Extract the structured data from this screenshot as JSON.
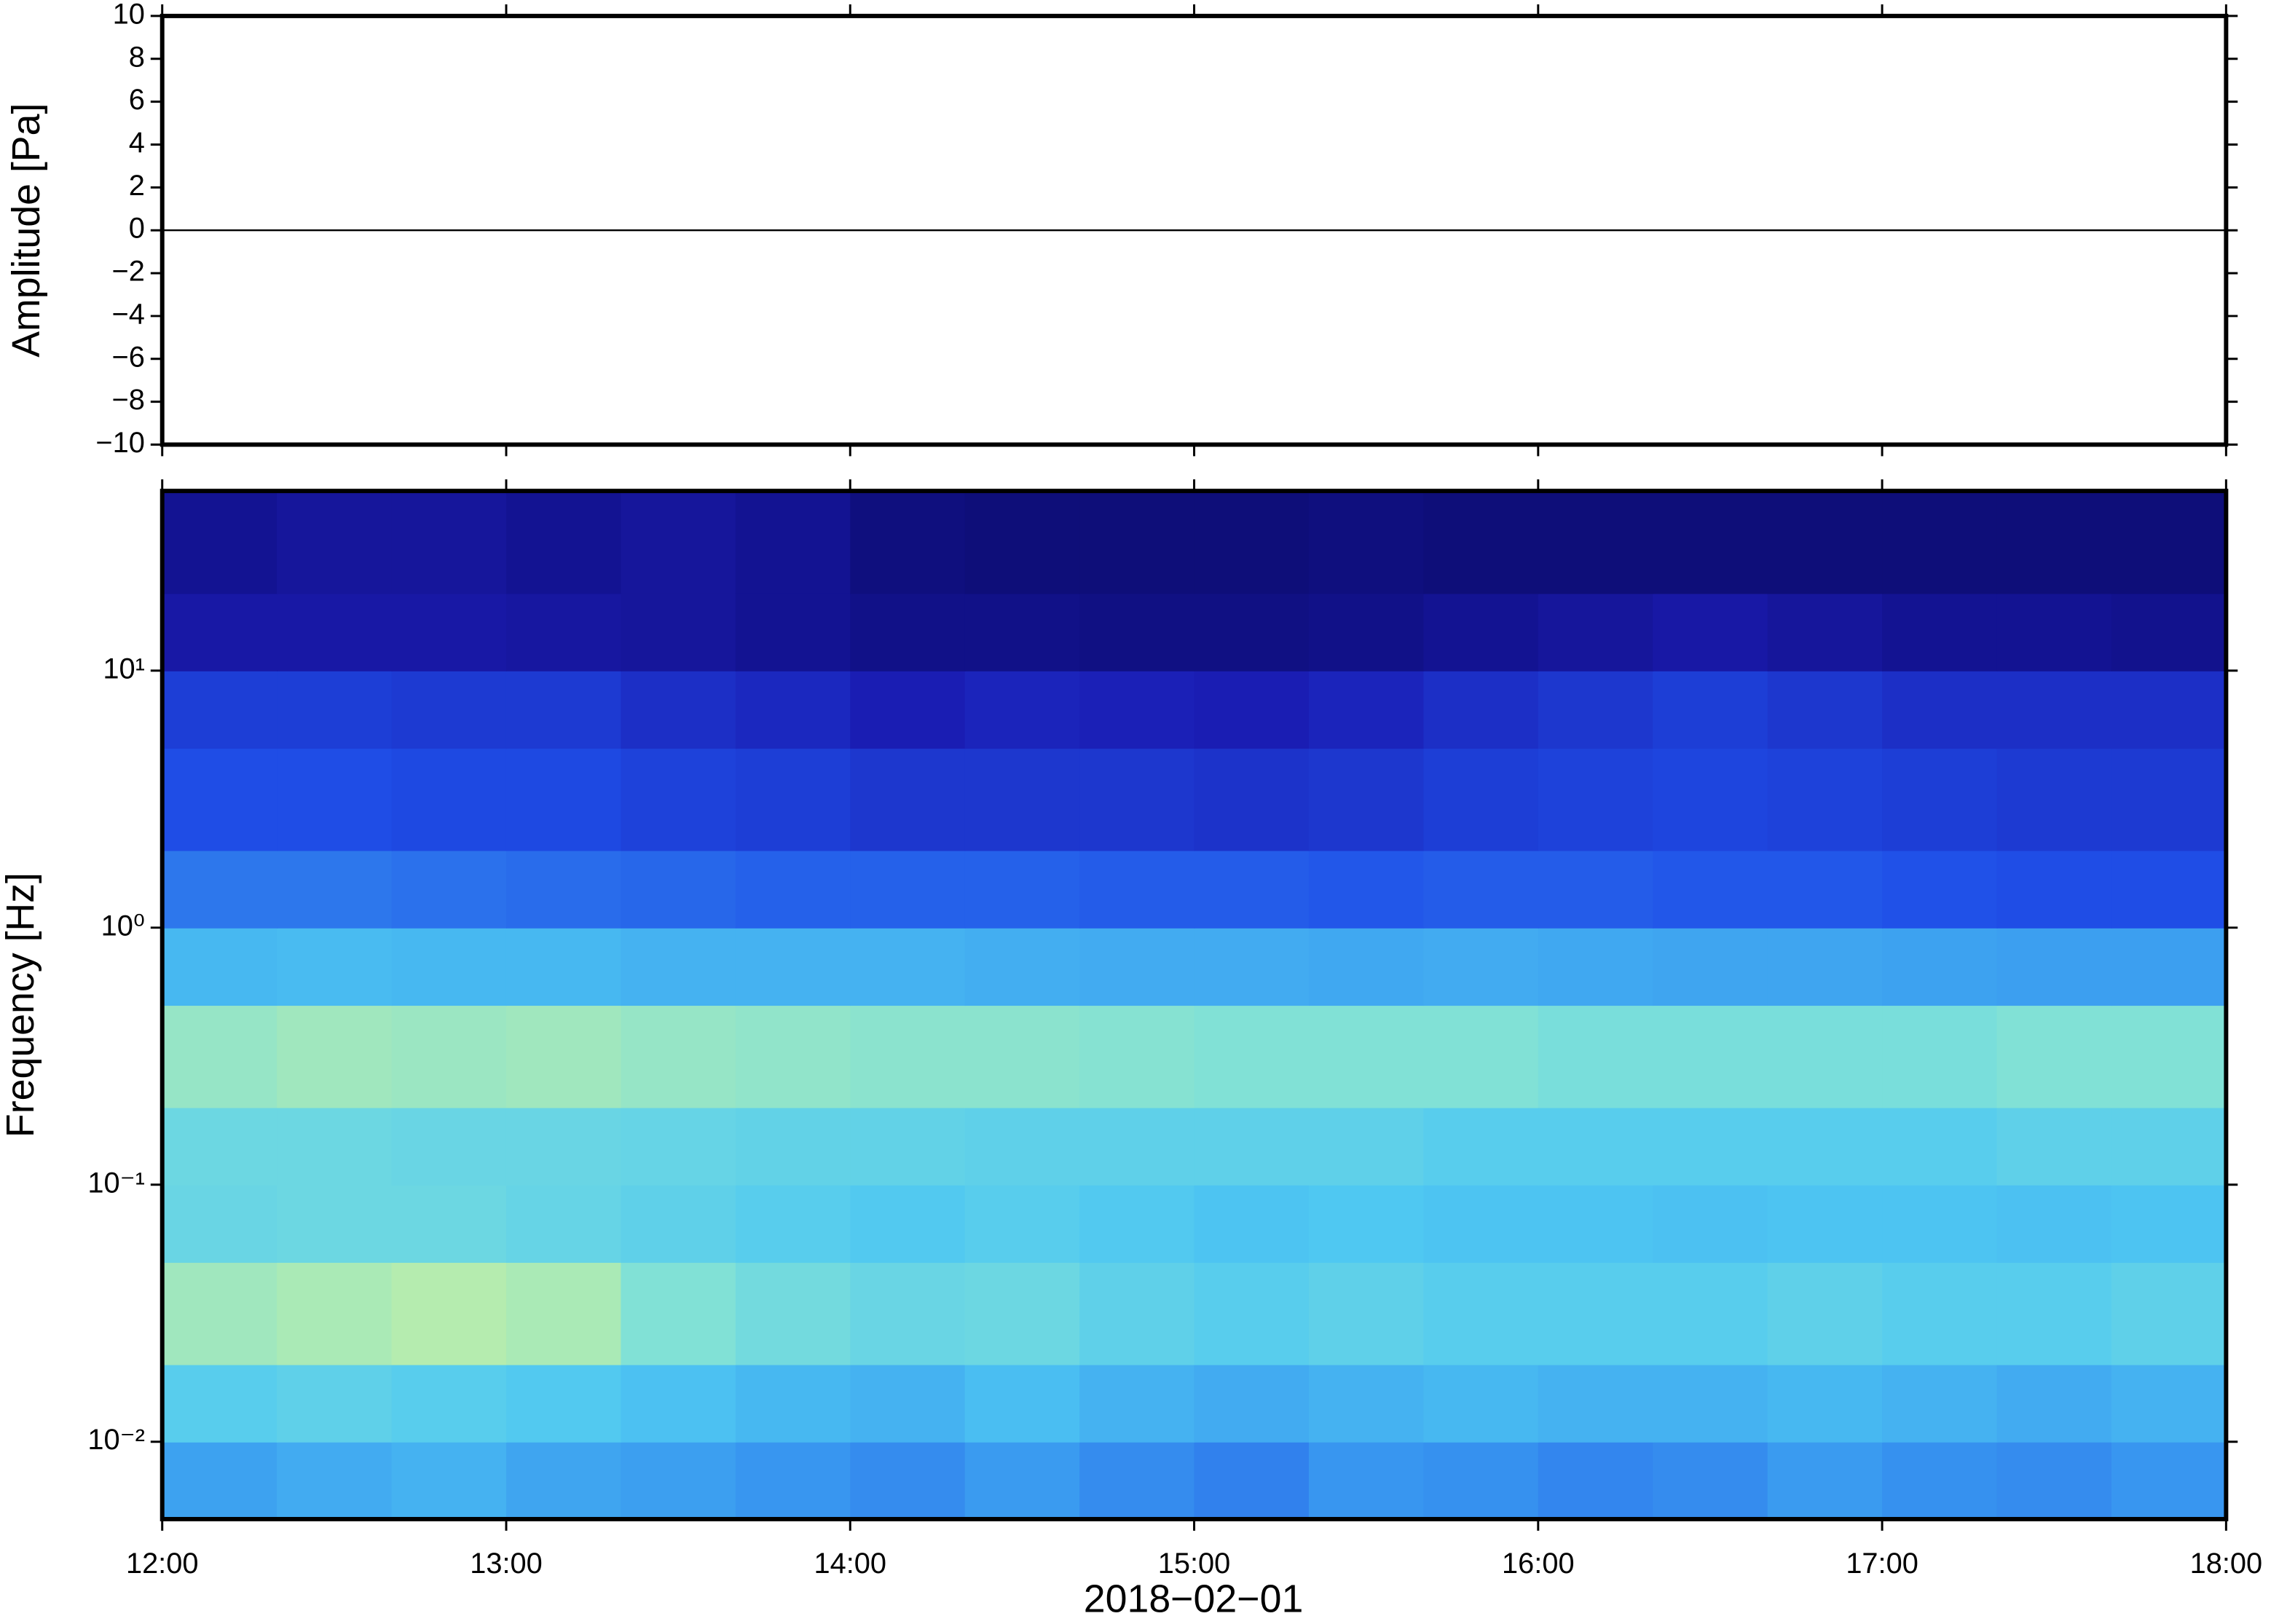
{
  "chart_data": [
    {
      "type": "line",
      "ylabel": "Amplitude [Pa]",
      "x": [
        12,
        18
      ],
      "series": [
        {
          "color": "#000000",
          "values": [
            0,
            0
          ]
        }
      ],
      "xlim": [
        12,
        18
      ],
      "xticks": [
        12,
        13,
        14,
        15,
        16,
        17,
        18
      ],
      "ylim": [
        -10,
        10
      ],
      "yticks": [
        {
          "value": -10,
          "label": "−10"
        },
        {
          "value": -8,
          "label": "−8"
        },
        {
          "value": -6,
          "label": "−6"
        },
        {
          "value": -4,
          "label": "−4"
        },
        {
          "value": -2,
          "label": "−2"
        },
        0,
        2,
        4,
        6,
        8,
        10
      ]
    },
    {
      "type": "heatmap",
      "ylabel": "Frequency [Hz]",
      "xlabel": "2018−02−01",
      "xlim": [
        12,
        18
      ],
      "xticks": [
        {
          "value": 12,
          "label": "12:00"
        },
        {
          "value": 13,
          "label": "13:00"
        },
        {
          "value": 14,
          "label": "14:00"
        },
        {
          "value": 15,
          "label": "15:00"
        },
        {
          "value": 16,
          "label": "16:00"
        },
        {
          "value": 17,
          "label": "17:00"
        },
        {
          "value": 18,
          "label": "18:00"
        }
      ],
      "ylim": [
        0.005,
        50
      ],
      "log_y": true,
      "yticks": [
        {
          "value": 0.01,
          "label": "10⁻²"
        },
        {
          "value": 0.1,
          "label": "10⁻¹"
        },
        {
          "value": 1,
          "label": "10⁰"
        },
        {
          "value": 10,
          "label": "10¹"
        }
      ],
      "x_edges": [
        12,
        12.3333,
        12.6667,
        13,
        13.3333,
        13.6667,
        14,
        14.3333,
        14.6667,
        15,
        15.3333,
        15.6667,
        16,
        16.3333,
        16.6667,
        17,
        17.3333,
        17.6667,
        18
      ],
      "y_edges": [
        0.005,
        0.01,
        0.02,
        0.05,
        0.1,
        0.2,
        0.5,
        1,
        2,
        5,
        10,
        20,
        50
      ],
      "zlim": [
        0,
        1
      ],
      "colormap": [
        "#0b0b6b",
        "#1a1ab0",
        "#1f4fe8",
        "#3a9bf0",
        "#4fc8f2",
        "#7ee0d8",
        "#c8f0a0",
        "#f0f8a0"
      ],
      "z": [
        [
          0.45,
          0.48,
          0.5,
          0.46,
          0.44,
          0.42,
          0.4,
          0.43,
          0.4,
          0.38,
          0.42,
          0.41,
          0.39,
          0.4,
          0.43,
          0.41,
          0.4,
          0.42
        ],
        [
          0.6,
          0.62,
          0.6,
          0.58,
          0.55,
          0.52,
          0.5,
          0.54,
          0.5,
          0.48,
          0.5,
          0.52,
          0.5,
          0.5,
          0.52,
          0.5,
          0.48,
          0.5
        ],
        [
          0.78,
          0.8,
          0.82,
          0.8,
          0.72,
          0.68,
          0.65,
          0.66,
          0.62,
          0.6,
          0.62,
          0.6,
          0.6,
          0.6,
          0.62,
          0.6,
          0.6,
          0.62
        ],
        [
          0.65,
          0.66,
          0.66,
          0.64,
          0.62,
          0.6,
          0.58,
          0.6,
          0.58,
          0.56,
          0.57,
          0.56,
          0.56,
          0.55,
          0.56,
          0.56,
          0.55,
          0.56
        ],
        [
          0.66,
          0.66,
          0.65,
          0.65,
          0.64,
          0.63,
          0.63,
          0.62,
          0.62,
          0.62,
          0.62,
          0.6,
          0.6,
          0.6,
          0.6,
          0.6,
          0.62,
          0.62
        ],
        [
          0.76,
          0.78,
          0.77,
          0.78,
          0.76,
          0.75,
          0.74,
          0.74,
          0.73,
          0.72,
          0.72,
          0.72,
          0.7,
          0.7,
          0.7,
          0.7,
          0.72,
          0.72
        ],
        [
          0.52,
          0.53,
          0.52,
          0.52,
          0.5,
          0.5,
          0.5,
          0.49,
          0.48,
          0.48,
          0.47,
          0.48,
          0.47,
          0.46,
          0.46,
          0.45,
          0.44,
          0.44
        ],
        [
          0.36,
          0.36,
          0.35,
          0.34,
          0.33,
          0.32,
          0.32,
          0.32,
          0.31,
          0.31,
          0.3,
          0.31,
          0.31,
          0.3,
          0.3,
          0.29,
          0.28,
          0.28
        ],
        [
          0.28,
          0.28,
          0.27,
          0.27,
          0.25,
          0.24,
          0.22,
          0.22,
          0.22,
          0.21,
          0.22,
          0.24,
          0.25,
          0.26,
          0.25,
          0.24,
          0.23,
          0.23
        ],
        [
          0.24,
          0.24,
          0.23,
          0.23,
          0.2,
          0.18,
          0.15,
          0.17,
          0.16,
          0.15,
          0.17,
          0.2,
          0.22,
          0.24,
          0.22,
          0.2,
          0.2,
          0.2
        ],
        [
          0.12,
          0.12,
          0.12,
          0.11,
          0.1,
          0.08,
          0.06,
          0.06,
          0.05,
          0.05,
          0.06,
          0.08,
          0.1,
          0.12,
          0.1,
          0.08,
          0.08,
          0.07
        ],
        [
          0.08,
          0.1,
          0.1,
          0.08,
          0.1,
          0.08,
          0.04,
          0.03,
          0.03,
          0.03,
          0.04,
          0.03,
          0.03,
          0.03,
          0.03,
          0.03,
          0.03,
          0.03
        ]
      ]
    }
  ]
}
